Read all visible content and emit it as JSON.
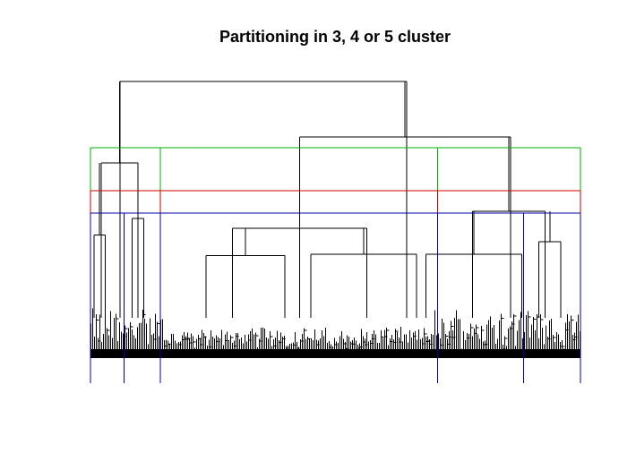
{
  "chart_data": {
    "type": "dendrogram",
    "title": "Partitioning in 3, 4 or 5 cluster",
    "xlabel": "",
    "ylabel": "",
    "axes_shown": false,
    "leaf_range": [
      0,
      1
    ],
    "height_range": [
      0,
      1
    ],
    "branch_color": "#000000",
    "merges": [
      {
        "name": "root",
        "x_left": 0.06,
        "x_right": 0.645,
        "height": 1.0,
        "parent_height": null
      },
      {
        "name": "right-group",
        "x_left": 0.427,
        "x_right": 0.857,
        "height": 0.8,
        "parent_height": 1.0
      },
      {
        "name": "left-group",
        "x_left": 0.022,
        "x_right": 0.097,
        "height": 0.705,
        "parent_height": 1.0
      },
      {
        "name": "middle-group",
        "x_left": 0.29,
        "x_right": 0.564,
        "height": 0.47,
        "parent_height": 0.8
      },
      {
        "name": "far-right-group",
        "x_left": 0.78,
        "x_right": 0.928,
        "height": 0.53,
        "parent_height": 0.8
      },
      {
        "name": "cluster-3",
        "x_left": 0.236,
        "x_right": 0.397,
        "height": 0.37,
        "parent_height": 0.47
      },
      {
        "name": "cluster-3b",
        "x_left": 0.45,
        "x_right": 0.665,
        "height": 0.375,
        "parent_height": 0.47
      },
      {
        "name": "cluster-1",
        "x_left": 0.007,
        "x_right": 0.03,
        "height": 0.445,
        "parent_height": 0.705
      },
      {
        "name": "cluster-2",
        "x_left": 0.085,
        "x_right": 0.109,
        "height": 0.505,
        "parent_height": 0.705
      },
      {
        "name": "cluster-4",
        "x_left": 0.685,
        "x_right": 0.88,
        "height": 0.375,
        "parent_height": 0.53
      },
      {
        "name": "cluster-5",
        "x_left": 0.915,
        "x_right": 0.96,
        "height": 0.42,
        "parent_height": 0.53
      }
    ],
    "cut_boxes": [
      {
        "k": 3,
        "color": "#00b000",
        "height": 0.76,
        "boundaries": [
          0.0,
          0.143,
          0.708,
          1.0
        ]
      },
      {
        "k": 4,
        "color": "#cc0000",
        "height": 0.605,
        "boundaries": [
          0.0,
          0.143,
          0.708,
          1.0
        ]
      },
      {
        "k": 5,
        "color": "#0000aa",
        "height": 0.525,
        "boundaries": [
          0.0,
          0.069,
          0.143,
          0.708,
          0.884,
          1.0
        ]
      }
    ]
  }
}
